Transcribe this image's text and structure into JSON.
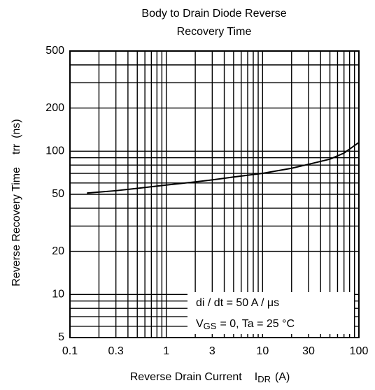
{
  "chart_data": {
    "type": "line",
    "title": [
      "Body to Drain Diode Reverse",
      "Recovery Time"
    ],
    "xlabel": "Reverse Drain Current",
    "xlabel_symbol": "I",
    "xlabel_sub": "DR",
    "xlabel_unit": "(A)",
    "ylabel": "Reverse Recovery Time",
    "ylabel_symbol": "trr",
    "ylabel_unit": "(ns)",
    "xscale": "log",
    "yscale": "log",
    "grid": true,
    "xlim": [
      0.1,
      100
    ],
    "ylim": [
      5,
      500
    ],
    "xticks": [
      0.1,
      0.3,
      1,
      3,
      10,
      30,
      100
    ],
    "yticks": [
      5,
      10,
      20,
      50,
      100,
      200,
      500
    ],
    "x_minor_ticks": [
      0.2,
      0.4,
      0.5,
      0.6,
      0.7,
      0.8,
      0.9,
      2,
      4,
      5,
      6,
      7,
      8,
      9,
      20,
      40,
      50,
      60,
      70,
      80,
      90
    ],
    "y_minor_ticks": [
      6,
      7,
      8,
      9,
      30,
      40,
      60,
      70,
      80,
      90,
      300,
      400
    ],
    "annotation": {
      "line1": "di / dt = 50 A / μs",
      "line2_symbol": "V",
      "line2_sub": "GS",
      "line2_rest": "= 0, Ta = 25 °C"
    },
    "series": [
      {
        "color": "#000000",
        "x": [
          0.15,
          0.3,
          0.5,
          1,
          2,
          3,
          5,
          10,
          20,
          30,
          50,
          70,
          100
        ],
        "values": [
          51,
          53,
          55,
          58,
          61,
          63,
          66,
          70,
          76,
          81,
          88,
          97,
          115
        ]
      }
    ]
  }
}
